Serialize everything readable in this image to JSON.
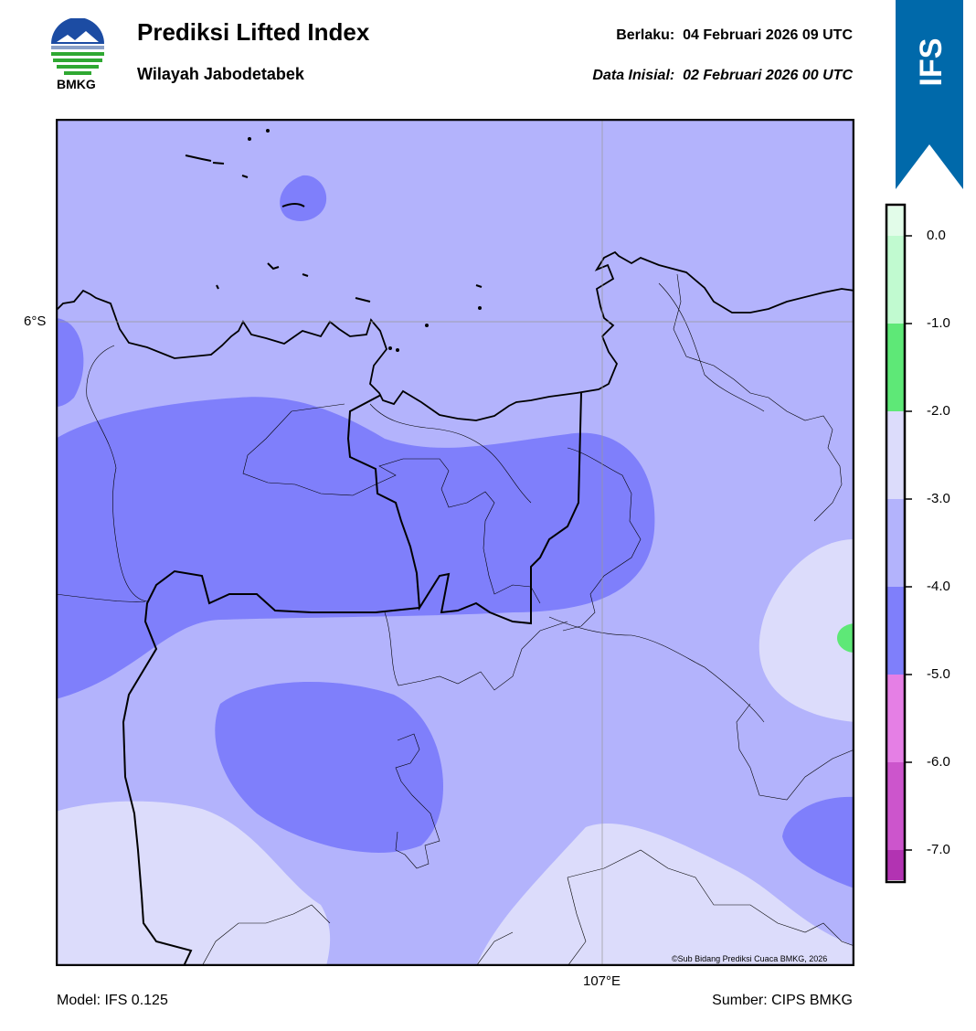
{
  "header": {
    "title": "Prediksi Lifted Index",
    "region": "Wilayah Jabodetabek",
    "valid_label": "Berlaku:",
    "valid_value": "04 Februari 2026 09 UTC",
    "init_label": "Data Inisial:",
    "init_value": "02 Februari 2026 00 UTC"
  },
  "logo": {
    "text": "BMKG",
    "icon": "bmkg-logo"
  },
  "model_badge": {
    "text": "IFS",
    "color": "#0069aa"
  },
  "map": {
    "lat_label": "6°S",
    "lon_label": "107°E",
    "copyright": "©Sub Bidang Prediksi Cuaca BMKG, 2026"
  },
  "colorbar": {
    "labels": [
      "0.0",
      "-1.0",
      "-2.0",
      "-3.0",
      "-4.0",
      "-5.0",
      "-6.0",
      "-7.0"
    ],
    "colors": [
      "#e2fce9",
      "#c1fad0",
      "#5ee877",
      "#dcdcfb",
      "#b3b3fc",
      "#7f7ffb",
      "#e57fe5",
      "#cc55cc",
      "#b233b2",
      "#8f1f8f"
    ]
  },
  "footer": {
    "model": "Model: IFS 0.125",
    "source": "Sumber: CIPS BMKG"
  }
}
